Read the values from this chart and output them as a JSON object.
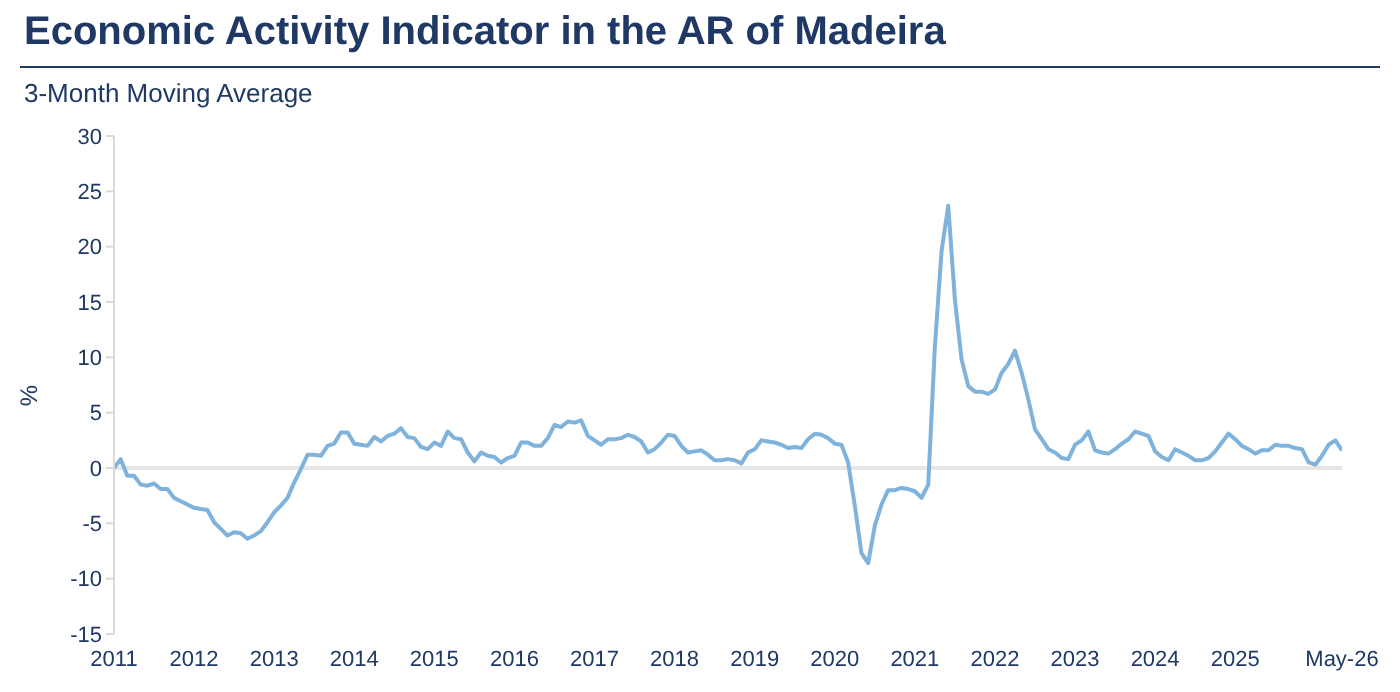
{
  "chart_data": {
    "type": "line",
    "title": "Economic Activity Indicator in the AR of Madeira",
    "subtitle": "3-Month Moving Average",
    "ylabel": "%",
    "x": [
      "2011-01",
      "2011-02",
      "2011-03",
      "2011-04",
      "2011-05",
      "2011-06",
      "2011-07",
      "2011-08",
      "2011-09",
      "2011-10",
      "2011-11",
      "2011-12",
      "2012-01",
      "2012-02",
      "2012-03",
      "2012-04",
      "2012-05",
      "2012-06",
      "2012-07",
      "2012-08",
      "2012-09",
      "2012-10",
      "2012-11",
      "2012-12",
      "2013-01",
      "2013-02",
      "2013-03",
      "2013-04",
      "2013-05",
      "2013-06",
      "2013-07",
      "2013-08",
      "2013-09",
      "2013-10",
      "2013-11",
      "2013-12",
      "2014-01",
      "2014-02",
      "2014-03",
      "2014-04",
      "2014-05",
      "2014-06",
      "2014-07",
      "2014-08",
      "2014-09",
      "2014-10",
      "2014-11",
      "2014-12",
      "2015-01",
      "2015-02",
      "2015-03",
      "2015-04",
      "2015-05",
      "2015-06",
      "2015-07",
      "2015-08",
      "2015-09",
      "2015-10",
      "2015-11",
      "2015-12",
      "2016-01",
      "2016-02",
      "2016-03",
      "2016-04",
      "2016-05",
      "2016-06",
      "2016-07",
      "2016-08",
      "2016-09",
      "2016-10",
      "2016-11",
      "2016-12",
      "2017-01",
      "2017-02",
      "2017-03",
      "2017-04",
      "2017-05",
      "2017-06",
      "2017-07",
      "2017-08",
      "2017-09",
      "2017-10",
      "2017-11",
      "2017-12",
      "2018-01",
      "2018-02",
      "2018-03",
      "2018-04",
      "2018-05",
      "2018-06",
      "2018-07",
      "2018-08",
      "2018-09",
      "2018-10",
      "2018-11",
      "2018-12",
      "2019-01",
      "2019-02",
      "2019-03",
      "2019-04",
      "2019-05",
      "2019-06",
      "2019-07",
      "2019-08",
      "2019-09",
      "2019-10",
      "2019-11",
      "2019-12",
      "2020-01",
      "2020-02",
      "2020-03",
      "2020-04",
      "2020-05",
      "2020-06",
      "2020-07",
      "2020-08",
      "2020-09",
      "2020-10",
      "2020-11",
      "2020-12",
      "2021-01",
      "2021-02",
      "2021-03",
      "2021-04",
      "2021-05",
      "2021-06",
      "2021-07",
      "2021-08",
      "2021-09",
      "2021-10",
      "2021-11",
      "2021-12",
      "2022-01",
      "2022-02",
      "2022-03",
      "2022-04",
      "2022-05",
      "2022-06",
      "2022-07",
      "2022-08",
      "2022-09",
      "2022-10",
      "2022-11",
      "2022-12",
      "2023-01",
      "2023-02",
      "2023-03",
      "2023-04",
      "2023-05",
      "2023-06",
      "2023-07",
      "2023-08",
      "2023-09",
      "2023-10",
      "2023-11",
      "2023-12",
      "2024-01",
      "2024-02",
      "2024-03",
      "2024-04",
      "2024-05",
      "2024-06",
      "2024-07",
      "2024-08",
      "2024-09",
      "2024-10",
      "2024-11",
      "2024-12",
      "2025-01",
      "2025-02",
      "2025-03",
      "2025-04",
      "2025-05",
      "2025-06",
      "2025-07",
      "2025-08",
      "2025-09",
      "2025-10",
      "2025-11",
      "2025-12",
      "2026-01",
      "2026-02",
      "2026-03",
      "2026-04",
      "2026-05"
    ],
    "series": [
      {
        "color": "#7fb3dc",
        "values": [
          0,
          0.8,
          -0.7,
          -0.7,
          -1.5,
          -1.6,
          -1.4,
          -1.9,
          -1.9,
          -2.7,
          -3.0,
          -3.3,
          -3.6,
          -3.7,
          -3.8,
          -4.9,
          -5.5,
          -6.1,
          -5.8,
          -5.9,
          -6.4,
          -6.1,
          -5.7,
          -4.9,
          -4.0,
          -3.4,
          -2.7,
          -1.3,
          -0.1,
          1.2,
          1.2,
          1.1,
          2.0,
          2.2,
          3.2,
          3.2,
          2.2,
          2.1,
          2.0,
          2.8,
          2.4,
          2.9,
          3.1,
          3.6,
          2.8,
          2.7,
          1.9,
          1.7,
          2.3,
          2.0,
          3.3,
          2.7,
          2.6,
          1.4,
          0.6,
          1.4,
          1.1,
          1.0,
          0.5,
          0.9,
          1.1,
          2.3,
          2.3,
          2.0,
          2.0,
          2.7,
          3.9,
          3.7,
          4.2,
          4.1,
          4.3,
          2.9,
          2.5,
          2.1,
          2.6,
          2.6,
          2.7,
          3.0,
          2.8,
          2.4,
          1.4,
          1.7,
          2.3,
          3.0,
          2.9,
          2.0,
          1.4,
          1.5,
          1.6,
          1.2,
          0.7,
          0.7,
          0.8,
          0.7,
          0.4,
          1.4,
          1.7,
          2.5,
          2.4,
          2.3,
          2.1,
          1.8,
          1.9,
          1.8,
          2.6,
          3.1,
          3.0,
          2.7,
          2.2,
          2.1,
          0.5,
          -3.4,
          -7.7,
          -8.6,
          -5.2,
          -3.3,
          -2.0,
          -2.0,
          -1.8,
          -1.9,
          -2.1,
          -2.7,
          -1.5,
          11.0,
          19.6,
          23.7,
          15.2,
          9.8,
          7.4,
          6.9,
          6.9,
          6.7,
          7.1,
          8.6,
          9.4,
          10.6,
          8.6,
          6.2,
          3.5,
          2.6,
          1.7,
          1.4,
          0.9,
          0.8,
          2.1,
          2.5,
          3.3,
          1.6,
          1.4,
          1.3,
          1.7,
          2.2,
          2.6,
          3.3,
          3.1,
          2.9,
          1.5,
          1.0,
          0.7,
          1.7,
          1.4,
          1.1,
          0.7,
          0.7,
          0.9,
          1.5,
          2.3,
          3.1,
          2.6,
          2.0,
          1.7,
          1.3,
          1.6,
          1.6,
          2.1,
          2.0,
          2.0,
          1.8,
          1.7,
          0.5,
          0.3,
          1.1,
          2.1,
          2.5,
          1.6
        ]
      }
    ],
    "xlim": [
      "2011-01",
      "2026-05"
    ],
    "xticks": [
      {
        "value": "2011-01",
        "label": "2011"
      },
      {
        "value": "2012-01",
        "label": "2012"
      },
      {
        "value": "2013-01",
        "label": "2013"
      },
      {
        "value": "2014-01",
        "label": "2014"
      },
      {
        "value": "2015-01",
        "label": "2015"
      },
      {
        "value": "2016-01",
        "label": "2016"
      },
      {
        "value": "2017-01",
        "label": "2017"
      },
      {
        "value": "2018-01",
        "label": "2018"
      },
      {
        "value": "2019-01",
        "label": "2019"
      },
      {
        "value": "2020-01",
        "label": "2020"
      },
      {
        "value": "2021-01",
        "label": "2021"
      },
      {
        "value": "2022-01",
        "label": "2022"
      },
      {
        "value": "2023-01",
        "label": "2023"
      },
      {
        "value": "2024-01",
        "label": "2024"
      },
      {
        "value": "2025-01",
        "label": "2025"
      },
      {
        "value": "2026-05",
        "label": "May-26"
      }
    ],
    "ylim": [
      -15,
      30
    ],
    "yticks": [
      -15,
      -10,
      -5,
      0,
      5,
      10,
      15,
      20,
      25,
      30
    ],
    "ref_lines": [
      {
        "axis": "y",
        "value": 0,
        "color": "#e6e6e6"
      }
    ]
  }
}
